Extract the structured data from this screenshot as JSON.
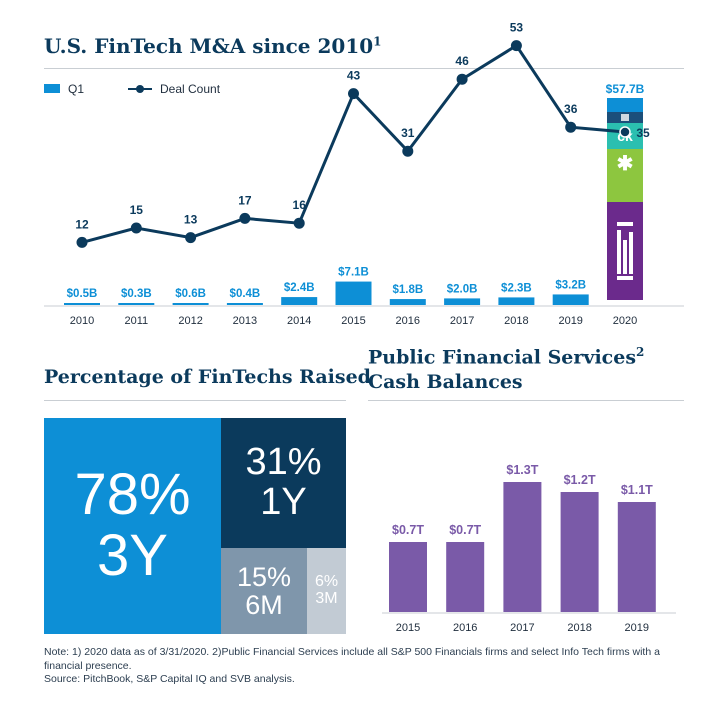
{
  "top_chart": {
    "title": "U.S. FinTech M&A since 2010",
    "title_sup": "1",
    "legend_q1": "Q1",
    "legend_deal": "Deal Count",
    "total_2020_label": "$57.7B",
    "logo_ck": "ck",
    "logo_star": "✱"
  },
  "pct_section": {
    "title": "Percentage of FinTechs Raised",
    "tiles": [
      {
        "pct": "78%",
        "period": "3Y"
      },
      {
        "pct": "31%",
        "period": "1Y"
      },
      {
        "pct": "15%",
        "period": "6M"
      },
      {
        "pct": "6%",
        "period": "3M"
      }
    ]
  },
  "cash_section": {
    "title_line1": "Public Financial Services",
    "title_sup": "2",
    "title_line2": "Cash Balances"
  },
  "notes": {
    "line1": "Note: 1) 2020 data as of 3/31/2020. 2)Public Financial Services include all S&P 500 Financials firms and select Info Tech firms with a financial presence.",
    "line2": "Source: PitchBook, S&P Capital IQ and SVB analysis."
  },
  "colors": {
    "q1_bar": "#0d8fd6",
    "deal_line": "#0b3a5c",
    "purple": "#7a5aa8",
    "dark_purple": "#6b2a8c",
    "green": "#8dc63f",
    "teal": "#2bbfb0",
    "tile_78": "#0d8fd6",
    "tile_31": "#0b3a5c",
    "tile_15": "#7f96ab",
    "tile_6": "#c2cbd4"
  },
  "chart_data": [
    {
      "type": "bar+line",
      "title": "U.S. FinTech M&A since 2010",
      "categories": [
        "2010",
        "2011",
        "2012",
        "2013",
        "2014",
        "2015",
        "2016",
        "2017",
        "2018",
        "2019",
        "2020"
      ],
      "series": [
        {
          "name": "Q1",
          "type": "bar",
          "unit": "$B",
          "values": [
            0.5,
            0.3,
            0.6,
            0.4,
            2.4,
            7.1,
            1.8,
            2.0,
            2.3,
            3.2,
            57.7
          ],
          "labels": [
            "$0.5B",
            "$0.3B",
            "$0.6B",
            "$0.4B",
            "$2.4B",
            "$7.1B",
            "$1.8B",
            "$2.0B",
            "$2.3B",
            "$3.2B",
            ""
          ]
        },
        {
          "name": "Deal Count",
          "type": "line",
          "values": [
            12,
            15,
            13,
            17,
            16,
            43,
            31,
            46,
            53,
            36,
            35
          ]
        }
      ],
      "legend": "top-left"
    },
    {
      "type": "bar",
      "title": "Public Financial Services Cash Balances",
      "categories": [
        "2015",
        "2016",
        "2017",
        "2018",
        "2019"
      ],
      "values": [
        0.7,
        0.7,
        1.3,
        1.2,
        1.1
      ],
      "labels": [
        "$0.7T",
        "$0.7T",
        "$1.3T",
        "$1.2T",
        "$1.1T"
      ],
      "unit": "$T",
      "ylim": [
        0,
        1.4
      ]
    }
  ]
}
